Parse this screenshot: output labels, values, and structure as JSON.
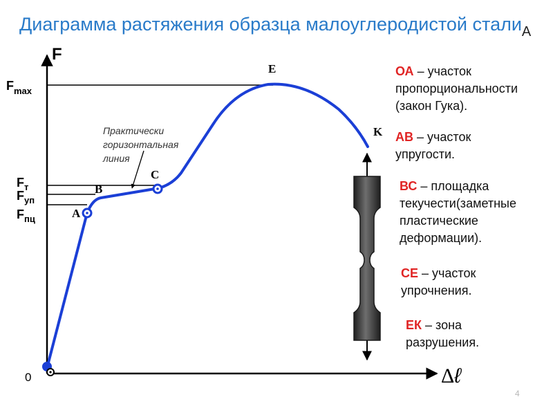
{
  "title": {
    "text": "Диаграмма растяжения образца малоуглеродистой стали",
    "trailing_letter": "А"
  },
  "axes": {
    "y_label": "F",
    "x_delta": "Δ",
    "x_symbol": "ℓ",
    "origin": "0"
  },
  "force_levels": {
    "f_max": {
      "base": "F",
      "sub": "max"
    },
    "f_t": {
      "base": "F",
      "sub": "т"
    },
    "f_up": {
      "base": "F",
      "sub": "уп"
    },
    "f_pts": {
      "base": "F",
      "sub": "пц"
    }
  },
  "points": {
    "A": "A",
    "B": "B",
    "C": "C",
    "E": "E",
    "K": "K"
  },
  "annotation": {
    "line1": "Практически",
    "line2": "горизонтальная",
    "line3": "линия"
  },
  "legend": [
    {
      "key": "ОА",
      "text": "– участок пропорциональности (закон Гука)."
    },
    {
      "key": "АВ",
      "text": "– участок упругости."
    },
    {
      "key": "ВС",
      "text": "– площадка текучести(заметные пластические деформации)."
    },
    {
      "key": "СЕ",
      "text": "– участок упрочнения."
    },
    {
      "key": "ЕК",
      "text": "– зона разрушения."
    }
  ],
  "page_number": "4",
  "colors": {
    "title": "#2a7bc9",
    "curve": "#1b3fd6",
    "legend_key": "#e02424",
    "specimen": "#3a3a3a"
  }
}
